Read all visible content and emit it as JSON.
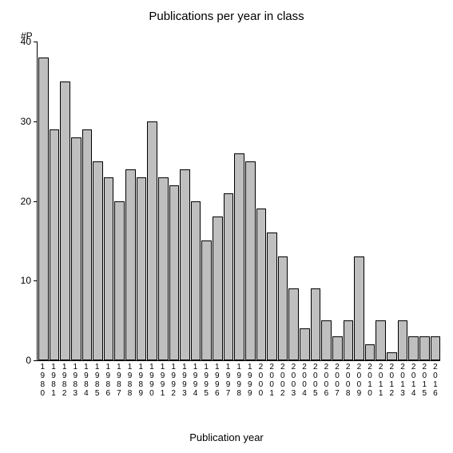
{
  "chart": {
    "type": "bar",
    "title": "Publications per year in class",
    "title_fontsize": 15,
    "ylabel": "#P",
    "xlabel": "Publication year",
    "label_fontsize": 13,
    "background_color": "#ffffff",
    "axis_color": "#000000",
    "bar_color": "#bfbfbf",
    "bar_border_color": "#000000",
    "ylim": [
      0,
      40
    ],
    "ytick_step": 10,
    "yticks": [
      0,
      10,
      20,
      30,
      40
    ],
    "categories": [
      "1980",
      "1981",
      "1982",
      "1983",
      "1984",
      "1985",
      "1986",
      "1987",
      "1988",
      "1989",
      "1990",
      "1991",
      "1992",
      "1993",
      "1994",
      "1995",
      "1996",
      "1997",
      "1998",
      "1999",
      "2000",
      "2001",
      "2002",
      "2003",
      "2004",
      "2005",
      "2006",
      "2007",
      "2008",
      "2009",
      "2010",
      "2011",
      "2012",
      "2013",
      "2014",
      "2015",
      "2016"
    ],
    "values": [
      38,
      29,
      35,
      28,
      29,
      25,
      23,
      20,
      24,
      23,
      30,
      23,
      22,
      24,
      20,
      15,
      18,
      21,
      26,
      25,
      19,
      16,
      13,
      9,
      4,
      9,
      5,
      3,
      5,
      13,
      2,
      5,
      1,
      5,
      3,
      3,
      3
    ],
    "tick_fontsize": 12,
    "xtick_fontsize": 10
  }
}
